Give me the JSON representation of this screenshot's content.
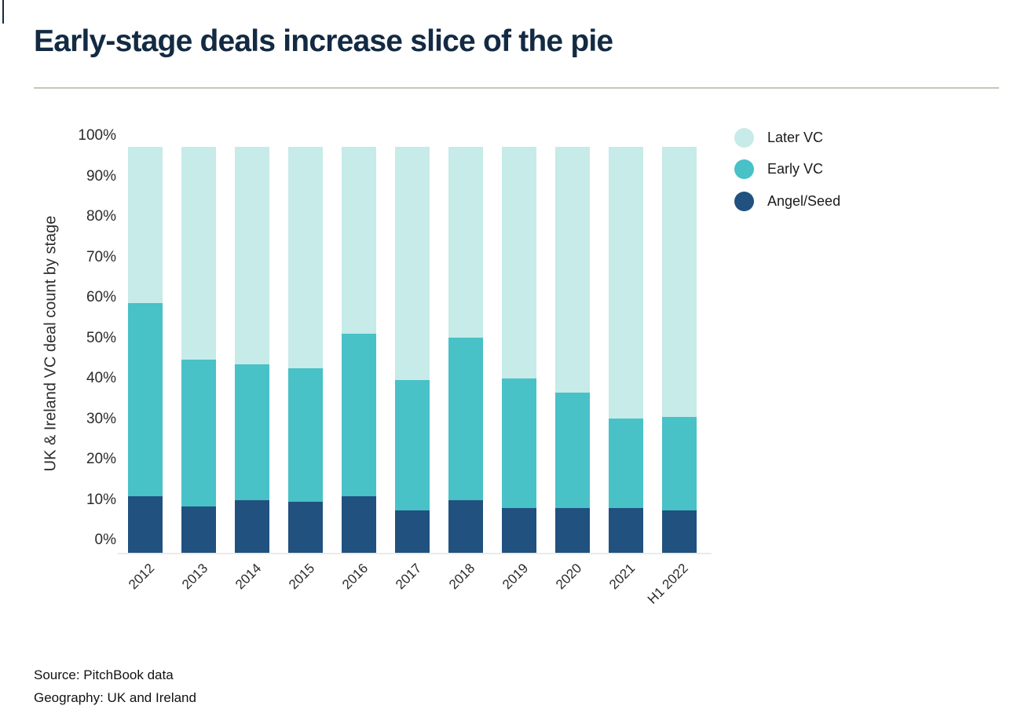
{
  "title": "Early-stage deals increase slice of the pie",
  "footer": {
    "source": "Source: PitchBook data",
    "geography": "Geography: UK and Ireland"
  },
  "chart_data": {
    "type": "bar",
    "stacked": true,
    "percent_stacked": true,
    "title": "Early-stage deals increase slice of the pie",
    "xlabel": "",
    "ylabel": "UK & Ireland VC deal count by stage",
    "categories": [
      "2012",
      "2013",
      "2014",
      "2015",
      "2016",
      "2017",
      "2018",
      "2019",
      "2020",
      "2021",
      "H1 2022"
    ],
    "series": [
      {
        "name": "Angel/Seed",
        "color": "#21517f",
        "values": [
          14,
          11.5,
          13,
          12.5,
          14,
          10.5,
          13,
          11,
          11,
          11,
          10.5
        ]
      },
      {
        "name": "Early VC",
        "color": "#48c1c7",
        "values": [
          47.5,
          36,
          33.5,
          33,
          40,
          32,
          40,
          32,
          28.5,
          22,
          23
        ]
      },
      {
        "name": "Later VC",
        "color": "#c6ebe8",
        "values": [
          38.5,
          52.5,
          53.5,
          54.5,
          46,
          57.5,
          47,
          57,
          60.5,
          67,
          66.5
        ]
      }
    ],
    "y_ticks": [
      "0%",
      "10%",
      "20%",
      "30%",
      "40%",
      "50%",
      "60%",
      "70%",
      "80%",
      "90%",
      "100%"
    ],
    "ylim": [
      0,
      100
    ],
    "unit": "%",
    "grid": false,
    "legend_position": "top-right",
    "legend_order_top_to_bottom": [
      "Later VC",
      "Early VC",
      "Angel/Seed"
    ]
  }
}
